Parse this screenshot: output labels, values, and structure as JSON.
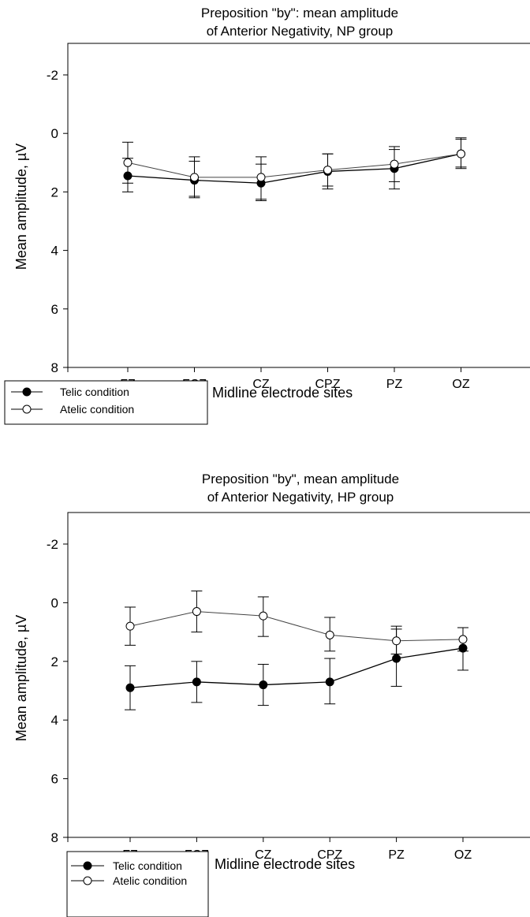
{
  "chart_data": [
    {
      "type": "line",
      "title": "Preposition \"by\": mean amplitude",
      "subtitle": "of Anterior Negativity, NP group",
      "xlabel": "Midline electrode sites",
      "ylabel": "Mean amplitude, µV",
      "categories": [
        "FZ",
        "FCZ",
        "CZ",
        "CPZ",
        "PZ",
        "OZ"
      ],
      "ylim": [
        8,
        -3
      ],
      "yticks": [
        -2,
        0,
        2,
        4,
        6,
        8
      ],
      "ytick_labels": [
        "-2",
        "0",
        "2",
        "4",
        "6",
        "8"
      ],
      "y_inverted": true,
      "grid": false,
      "legend_position": "bottom-left",
      "series": [
        {
          "name": "Telic condition",
          "marker": "filled-circle",
          "values": [
            1.45,
            1.6,
            1.7,
            1.3,
            1.2,
            0.7
          ],
          "err_low": [
            2.0,
            2.2,
            2.3,
            1.9,
            1.9,
            1.2
          ],
          "err_high": [
            0.85,
            0.95,
            1.05,
            0.7,
            0.55,
            0.2
          ]
        },
        {
          "name": "Atelic condition",
          "marker": "open-circle",
          "values": [
            1.0,
            1.5,
            1.5,
            1.25,
            1.05,
            0.7
          ],
          "err_low": [
            1.7,
            2.15,
            2.25,
            1.8,
            1.65,
            1.15
          ],
          "err_high": [
            0.3,
            0.8,
            0.8,
            0.7,
            0.45,
            0.15
          ]
        }
      ]
    },
    {
      "type": "line",
      "title": "Preposition \"by\", mean amplitude",
      "subtitle": "of Anterior Negativity, HP group",
      "xlabel": "Midline electrode sites",
      "ylabel": "Mean amplitude, µV",
      "categories": [
        "FZ",
        "FCZ",
        "CZ",
        "CPZ",
        "PZ",
        "OZ"
      ],
      "ylim": [
        8,
        -3
      ],
      "yticks": [
        -2,
        0,
        2,
        4,
        6,
        8
      ],
      "ytick_labels": [
        "-2",
        "0",
        "2",
        "4",
        "6",
        "8"
      ],
      "y_inverted": true,
      "grid": false,
      "legend_position": "bottom-left",
      "series": [
        {
          "name": "Telic condition",
          "marker": "filled-circle",
          "values": [
            2.9,
            2.7,
            2.8,
            2.7,
            1.9,
            1.55
          ],
          "err_low": [
            3.65,
            3.4,
            3.5,
            3.45,
            2.85,
            2.3
          ],
          "err_high": [
            2.15,
            2.0,
            2.1,
            1.9,
            0.9,
            0.85
          ]
        },
        {
          "name": "Atelic condition",
          "marker": "open-circle",
          "values": [
            0.8,
            0.3,
            0.45,
            1.1,
            1.3,
            1.25
          ],
          "err_low": [
            1.45,
            1.0,
            1.15,
            1.65,
            1.75,
            1.65
          ],
          "err_high": [
            0.15,
            -0.4,
            -0.2,
            0.5,
            0.8,
            0.85
          ]
        }
      ]
    }
  ]
}
